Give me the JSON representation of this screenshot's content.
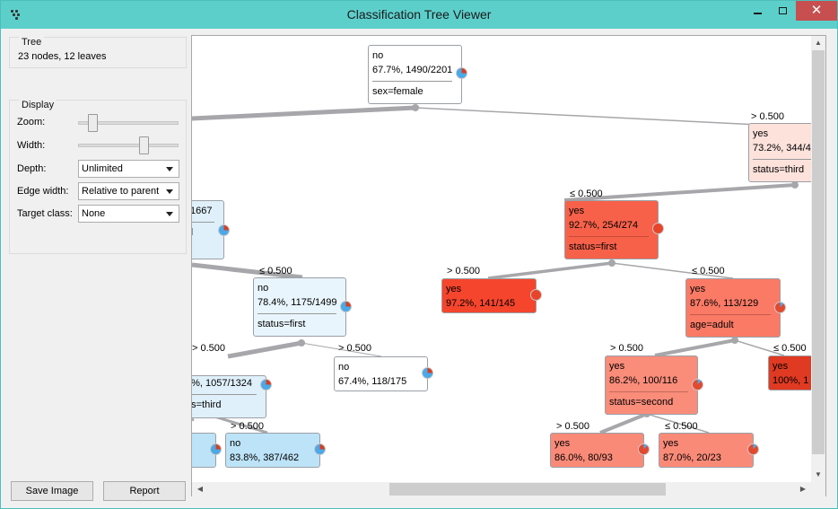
{
  "window": {
    "title": "Classification Tree Viewer",
    "close_glyph": "✕"
  },
  "tree_group": {
    "title": "Tree",
    "info": "23 nodes, 12 leaves"
  },
  "display_group": {
    "title": "Display",
    "zoom_label": "Zoom:",
    "width_label": "Width:",
    "depth_label": "Depth:",
    "depth_value": "Unlimited",
    "edge_width_label": "Edge width:",
    "edge_width_value": "Relative to parent",
    "target_class_label": "Target class:",
    "target_class_value": "None"
  },
  "buttons": {
    "save_image": "Save Image",
    "report": "Report"
  },
  "colors": {
    "accent": "#5dcfcb",
    "blue_node": "#dff0fb",
    "red_node": "#fa7a66",
    "pie_blue": "#4aa9e8",
    "pie_red": "#e2492f"
  },
  "edge_labels": {
    "e1": "> 0.500",
    "e2": "≤ 0.500",
    "e3": "≤ 0.500",
    "e4": "> 0.500",
    "e5": "≤ 0.500",
    "e6": "> 0.500",
    "e7": "> 0.500",
    "e8": "≤ 0.500",
    "e9": "> 0.500",
    "e10": "> 0.500",
    "e11": "> 0.500",
    "e12": "≤ 0.500"
  },
  "nodes": {
    "root": {
      "cls": "no",
      "stat": "67.7%, 1490/2201",
      "split": "sex=female"
    },
    "male": {
      "cls": "yes",
      "stat": "73.2%, 344/4",
      "split": "status=third"
    },
    "left_partial": {
      "stat": "/1667",
      "split": "d"
    },
    "female_nothird": {
      "cls": "yes",
      "stat": "92.7%, 254/274",
      "split": "status=first"
    },
    "first_leaf": {
      "cls": "yes",
      "stat": "97.2%, 141/145"
    },
    "second_adult": {
      "cls": "yes",
      "stat": "87.6%, 113/129",
      "split": "age=adult"
    },
    "child_leaf": {
      "cls": "yes",
      "stat": "100%, 1"
    },
    "adult_second": {
      "cls": "yes",
      "stat": "86.2%, 100/116",
      "split": "status=second"
    },
    "leaf_86": {
      "cls": "yes",
      "stat": "86.0%, 80/93"
    },
    "leaf_87": {
      "cls": "yes",
      "stat": "87.0%, 20/23"
    },
    "no_first": {
      "cls": "no",
      "stat": "78.4%, 1175/1499",
      "split": "status=first"
    },
    "leaf_67": {
      "cls": "no",
      "stat": "67.4%, 118/175"
    },
    "partial_third": {
      "stat": "3%, 1057/1324",
      "split": "us=third"
    },
    "leaf_83": {
      "cls": "no",
      "stat": "83.8%, 387/462"
    }
  }
}
